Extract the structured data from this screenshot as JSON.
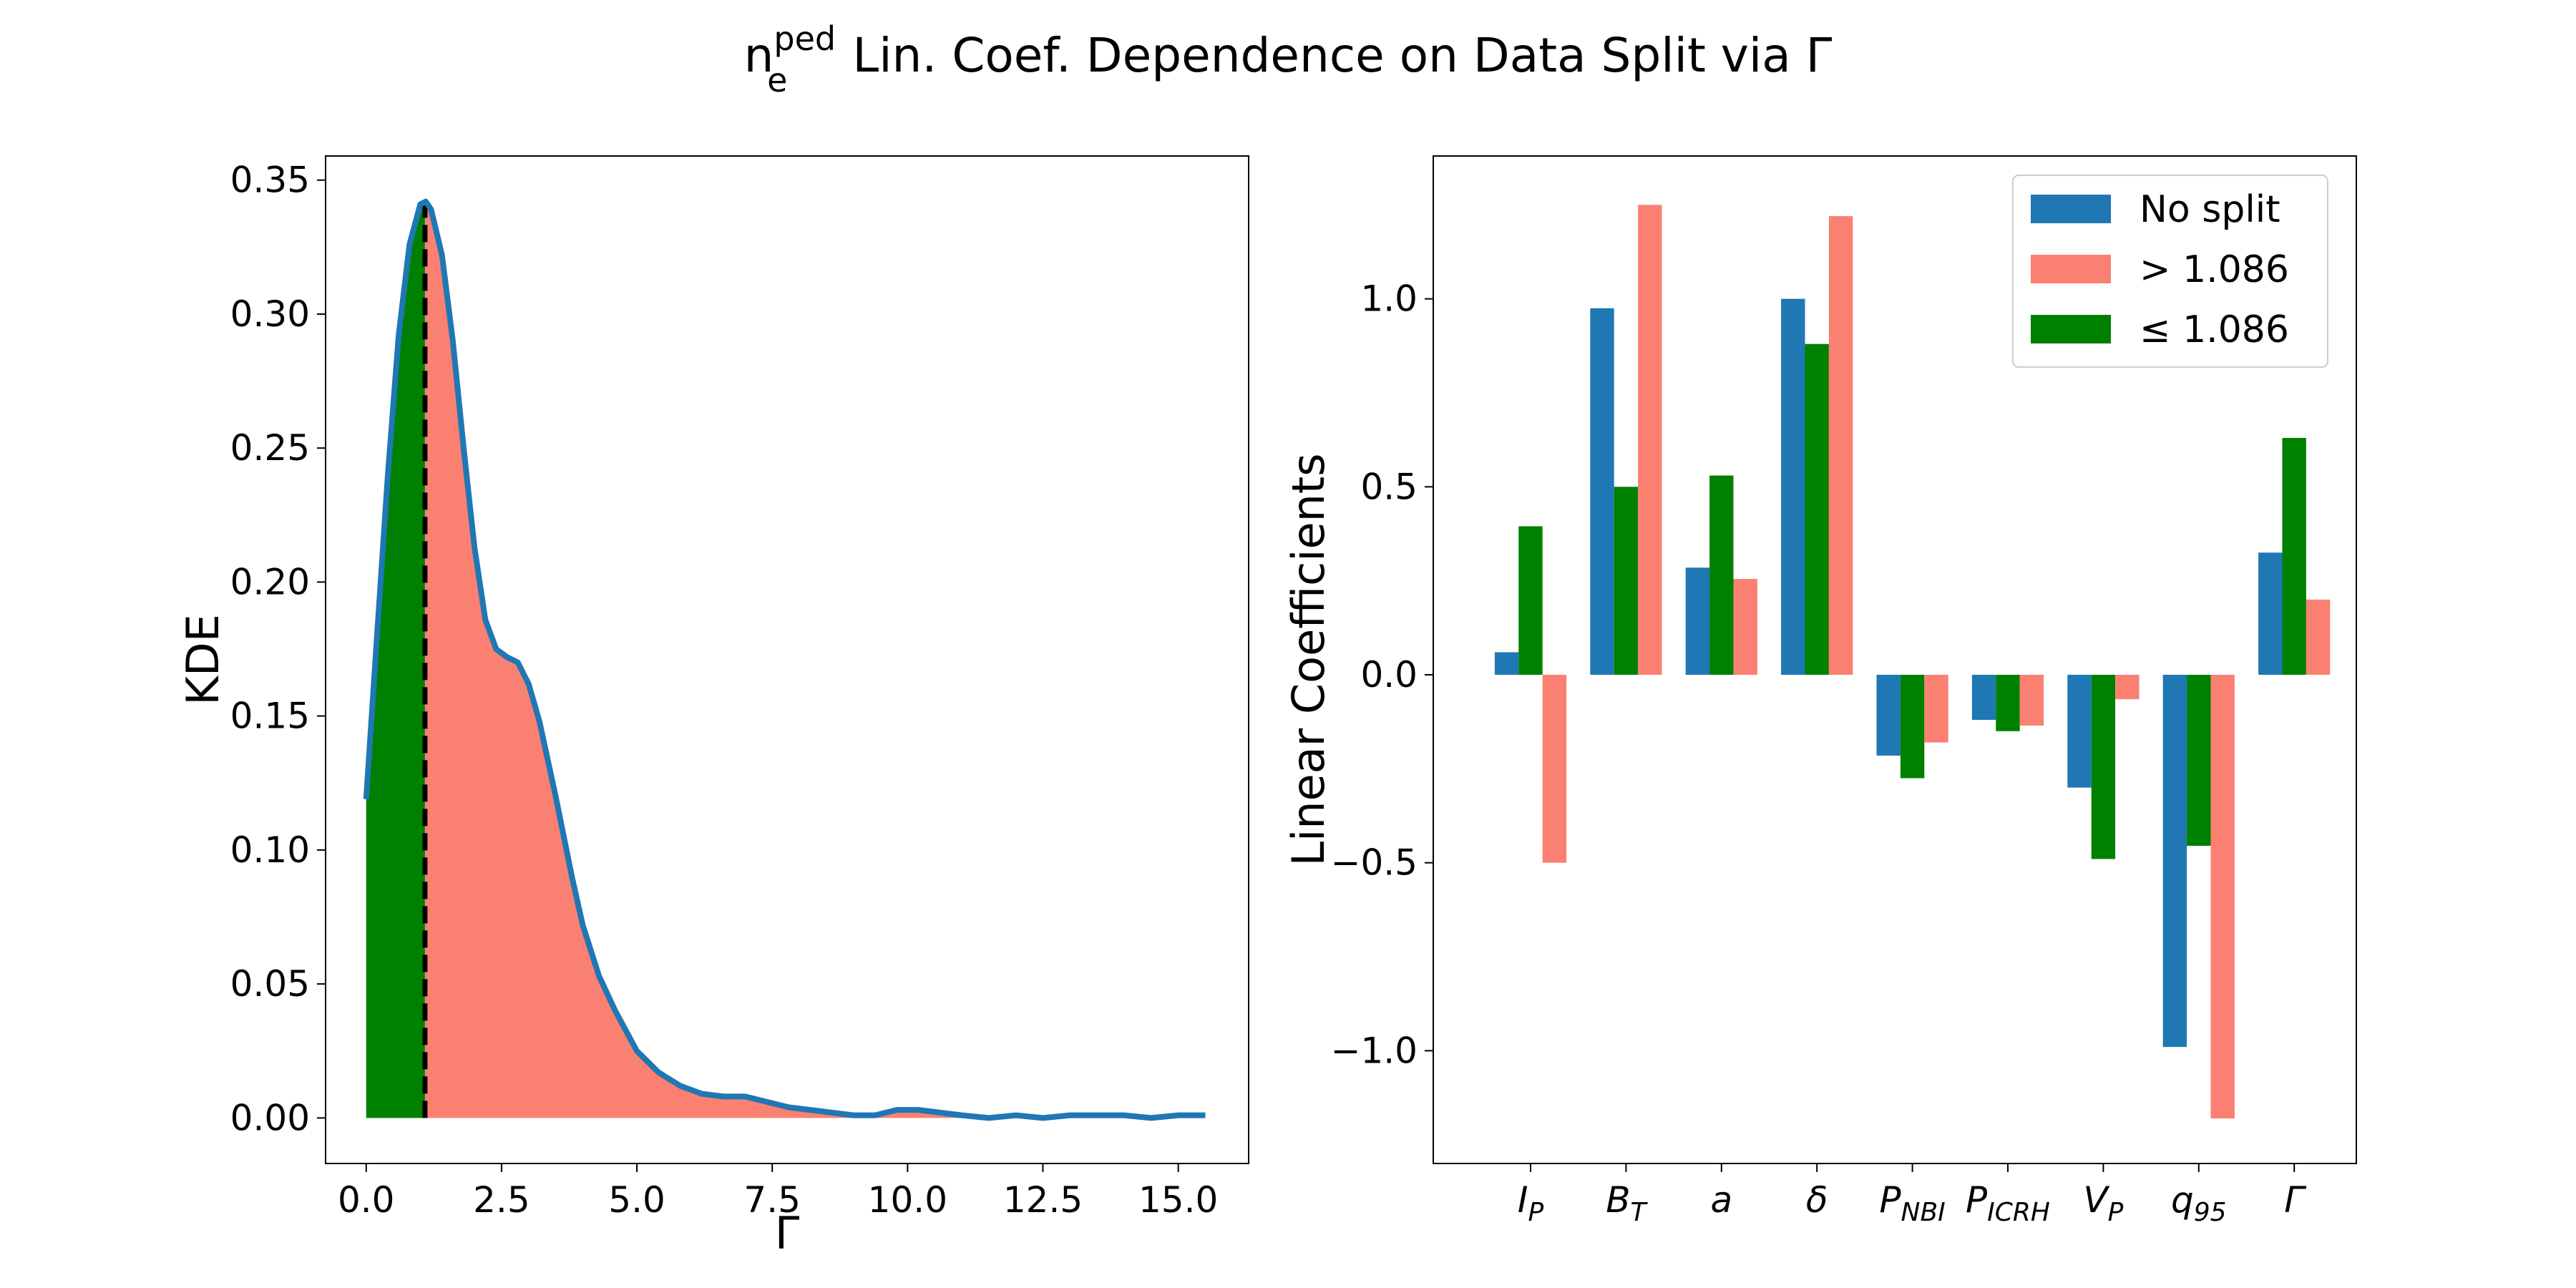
{
  "figure": {
    "title_base": "n",
    "title_sub": "e",
    "title_sup": "ped",
    "title_rest": " Lin. Coef. Dependence on Data Split via Γ"
  },
  "chart_data": [
    {
      "type": "area",
      "xlabel": "Γ",
      "ylabel": "KDE",
      "xlim": [
        -0.75,
        16.3
      ],
      "ylim": [
        -0.017,
        0.359
      ],
      "xticks": [
        "0.0",
        "2.5",
        "5.0",
        "7.5",
        "10.0",
        "12.5",
        "15.0"
      ],
      "xtick_values": [
        0,
        2.5,
        5,
        7.5,
        10,
        12.5,
        15
      ],
      "yticks": [
        "0.00",
        "0.05",
        "0.10",
        "0.15",
        "0.20",
        "0.25",
        "0.30",
        "0.35"
      ],
      "ytick_values": [
        0,
        0.05,
        0.1,
        0.15,
        0.2,
        0.25,
        0.3,
        0.35
      ],
      "split": 1.086,
      "curve": {
        "x": [
          0,
          0.2,
          0.4,
          0.6,
          0.8,
          1.0,
          1.1,
          1.2,
          1.4,
          1.6,
          1.8,
          2.0,
          2.2,
          2.4,
          2.6,
          2.8,
          3.0,
          3.2,
          3.5,
          3.8,
          4.0,
          4.3,
          4.6,
          5.0,
          5.4,
          5.8,
          6.2,
          6.6,
          7.0,
          7.4,
          7.8,
          8.2,
          8.6,
          9.0,
          9.4,
          9.8,
          10.2,
          10.6,
          11.0,
          11.5,
          12.0,
          12.5,
          13.0,
          13.5,
          14.0,
          14.5,
          15.0,
          15.5
        ],
        "y": [
          0.119,
          0.18,
          0.24,
          0.292,
          0.326,
          0.341,
          0.342,
          0.339,
          0.322,
          0.29,
          0.25,
          0.213,
          0.186,
          0.175,
          0.172,
          0.17,
          0.162,
          0.148,
          0.12,
          0.09,
          0.072,
          0.053,
          0.04,
          0.025,
          0.017,
          0.012,
          0.009,
          0.008,
          0.008,
          0.006,
          0.004,
          0.003,
          0.002,
          0.001,
          0.001,
          0.003,
          0.003,
          0.002,
          0.001,
          0,
          0.001,
          0,
          0.001,
          0.001,
          0.001,
          0.0,
          0.001,
          0.001
        ]
      },
      "colors": {
        "line": "#1f77b4",
        "below_split": "#008000",
        "above_split": "#fa8072",
        "split_line": "#000000"
      }
    },
    {
      "type": "bar",
      "ylabel": "Linear Coefficients",
      "ylim": [
        -1.3,
        1.38
      ],
      "yticks": [
        "−1.0",
        "−0.5",
        "0.0",
        "0.5",
        "1.0"
      ],
      "ytick_values": [
        -1,
        -0.5,
        0,
        0.5,
        1
      ],
      "categories": [
        {
          "base": "I",
          "sub": "P"
        },
        {
          "base": "B",
          "sub": "T"
        },
        {
          "base": "a",
          "sub": ""
        },
        {
          "base": "δ",
          "sub": ""
        },
        {
          "base": "P",
          "sub": "NBI"
        },
        {
          "base": "P",
          "sub": "ICRH"
        },
        {
          "base": "V",
          "sub": "P"
        },
        {
          "base": "q",
          "sub": "95"
        },
        {
          "base": "Γ",
          "sub": ""
        }
      ],
      "series": [
        {
          "name": "No split",
          "color": "#1f77b4",
          "values": [
            0.06,
            0.975,
            0.285,
            1.0,
            -0.215,
            -0.12,
            -0.3,
            -0.99,
            0.325
          ]
        },
        {
          "name": "≤  1.086",
          "color": "#008000",
          "values": [
            0.395,
            0.5,
            0.53,
            0.88,
            -0.275,
            -0.15,
            -0.49,
            -0.455,
            0.63
          ]
        },
        {
          "name": "> 1.086",
          "color": "#fa8072",
          "values": [
            -0.5,
            1.25,
            0.255,
            1.22,
            -0.18,
            -0.135,
            -0.065,
            -1.18,
            0.2
          ]
        }
      ],
      "legend": {
        "position": "top-right",
        "order": [
          "No split",
          "> 1.086",
          "≤  1.086"
        ]
      }
    }
  ]
}
